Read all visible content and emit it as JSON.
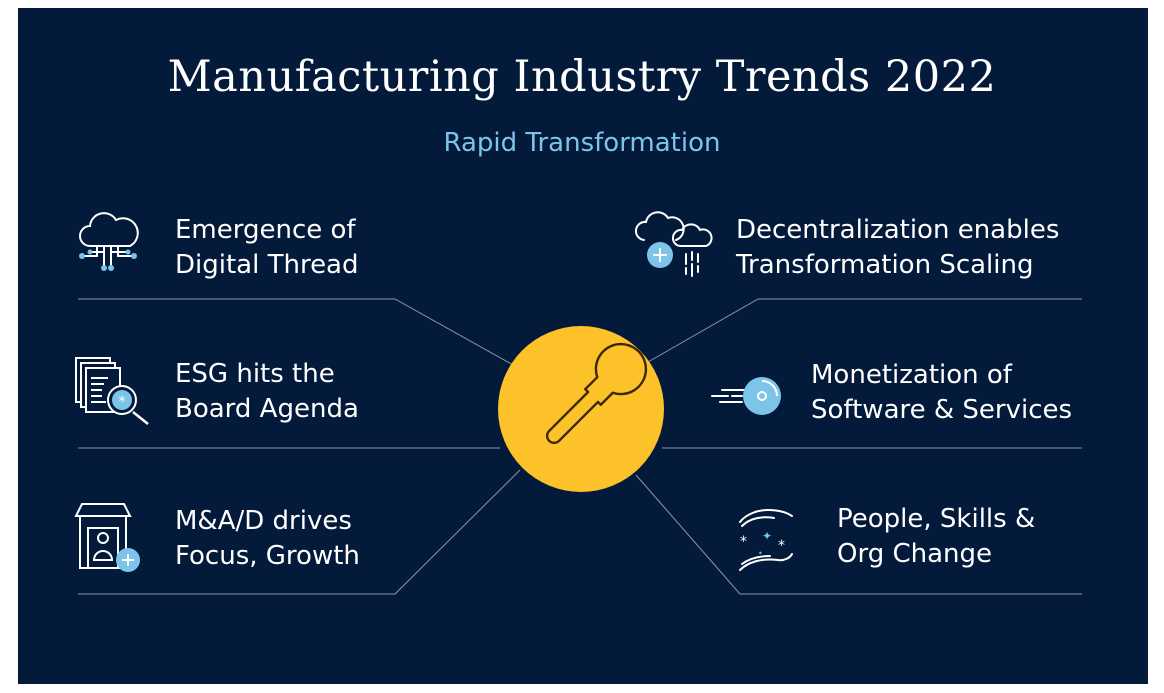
{
  "title": "Manufacturing Industry Trends 2022",
  "subtitle": "Rapid Transformation",
  "center": {
    "icon": "wrench-icon"
  },
  "trends": [
    {
      "id": "digital-thread",
      "line1": "Emergence of",
      "line2": "Digital Thread",
      "icon": "cloud-circuit-icon"
    },
    {
      "id": "esg",
      "line1": "ESG hits the",
      "line2": "Board Agenda",
      "icon": "documents-magnifier-icon"
    },
    {
      "id": "mad",
      "line1": "M&A/D drives",
      "line2": "Focus, Growth",
      "icon": "building-person-plus-icon"
    },
    {
      "id": "decentralization",
      "line1": "Decentralization enables",
      "line2": "Transformation Scaling",
      "icon": "clouds-plus-icon"
    },
    {
      "id": "monetization",
      "line1": "Monetization of",
      "line2": "Software & Services",
      "icon": "speeding-disc-icon"
    },
    {
      "id": "people",
      "line1": "People, Skills &",
      "line2": "Org Change",
      "icon": "hands-stars-icon"
    }
  ],
  "colors": {
    "background": "#041a3a",
    "accent": "#fdc12a",
    "highlight": "#7cc4e8",
    "text": "#ffffff",
    "line": "#8c97a8"
  }
}
